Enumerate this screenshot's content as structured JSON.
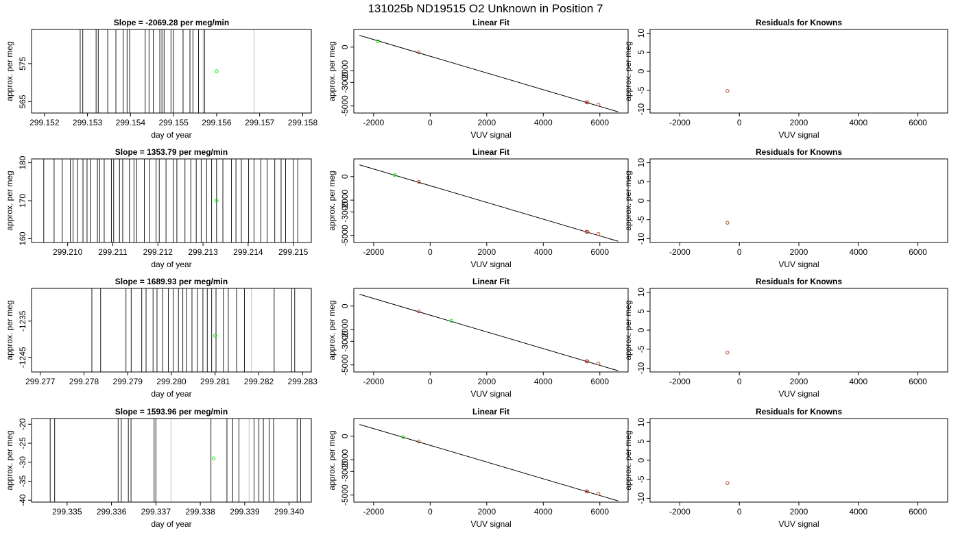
{
  "figure": {
    "title": "131025b      ND19515    O2 Unknown in Position  7"
  },
  "colors": {
    "frame": "#000000",
    "trace_dark": "#1a1a1a",
    "trace_light": "#c8c8c8",
    "unknown_point": "#00ee00",
    "known_point": "#b5442f",
    "fit_line": "#000000"
  },
  "chart_data": [
    {
      "type": "line",
      "row": 0,
      "kind": "time",
      "title": "Slope =  -2069.28  per meg/min",
      "xlabel": "day of year",
      "ylabel": "approx. per meg",
      "xlim": [
        299.1517,
        299.1582
      ],
      "ylim": [
        562,
        584
      ],
      "xticks": [
        299.152,
        299.153,
        299.154,
        299.155,
        299.156,
        299.157,
        299.158
      ],
      "xtick_labels": [
        "299.152",
        "299.153",
        "299.154",
        "299.155",
        "299.156",
        "299.157",
        "299.158"
      ],
      "yticks": [
        565,
        575
      ],
      "ytick_labels": [
        "565",
        "575"
      ],
      "dark_lines": [
        299.15283,
        299.15289,
        299.1532,
        299.15325,
        299.15347,
        299.15366,
        299.15383,
        299.15392,
        299.15398,
        299.15434,
        299.15443,
        299.15453,
        299.15468,
        299.15473,
        299.15478,
        299.15494,
        299.155,
        299.15522,
        299.15538,
        299.15545,
        299.15558,
        299.15569,
        299.15572
      ],
      "light_lines": [
        299.15569,
        299.15687
      ],
      "unknown_point": {
        "x": 299.156,
        "y": 573
      },
      "known_points": []
    },
    {
      "type": "scatter",
      "row": 0,
      "kind": "fit",
      "title": "Linear Fit",
      "xlabel": "VUV signal",
      "ylabel": "approx. per meg",
      "xlim": [
        -2700,
        7000
      ],
      "ylim": [
        -5600,
        1500
      ],
      "xticks": [
        -2000,
        0,
        2000,
        4000,
        6000
      ],
      "xtick_labels": [
        "-2000",
        "0",
        "2000",
        "4000",
        "6000"
      ],
      "yticks": [
        -5000,
        -3000,
        -2000,
        0
      ],
      "ytick_labels": [
        "-5000",
        "-3000",
        "-2000",
        "0"
      ],
      "fit_line": {
        "x": [
          -2500,
          6650
        ],
        "y": [
          1000,
          -5500
        ]
      },
      "unknown_point": {
        "x": -1850,
        "y": 500
      },
      "known_points": [
        {
          "x": -400,
          "y": -450
        },
        {
          "x": 5530,
          "y": -4680
        },
        {
          "x": 5560,
          "y": -4700
        },
        {
          "x": 5950,
          "y": -4880
        }
      ]
    },
    {
      "type": "scatter",
      "row": 0,
      "kind": "resid",
      "title": "Residuals for Knowns",
      "xlabel": "VUV signal",
      "ylabel": "approx. per meg",
      "xlim": [
        -3000,
        7000
      ],
      "ylim": [
        -11,
        11
      ],
      "xticks": [
        -2000,
        0,
        2000,
        4000,
        6000
      ],
      "xtick_labels": [
        "-2000",
        "0",
        "2000",
        "4000",
        "6000"
      ],
      "yticks": [
        -10,
        -5,
        0,
        5,
        10
      ],
      "ytick_labels": [
        "-10",
        "-5",
        "0",
        "5",
        "10"
      ],
      "known_points": [
        {
          "x": -400,
          "y": -5.2
        }
      ]
    },
    {
      "type": "line",
      "row": 1,
      "kind": "time",
      "title": "Slope =  1353.79  per meg/min",
      "xlabel": "day of year",
      "ylabel": "approx. per meg",
      "xlim": [
        299.2092,
        299.2154
      ],
      "ylim": [
        159,
        181
      ],
      "xticks": [
        299.21,
        299.211,
        299.212,
        299.213,
        299.214,
        299.215
      ],
      "xtick_labels": [
        "299.210",
        "299.211",
        "299.212",
        "299.213",
        "299.214",
        "299.215"
      ],
      "yticks": [
        160,
        170,
        180
      ],
      "ytick_labels": [
        "160",
        "170",
        "180"
      ],
      "dark_lines": [
        299.20947,
        299.2097,
        299.20988,
        299.21006,
        299.21012,
        299.21022,
        299.21034,
        299.21043,
        299.2105,
        299.21066,
        299.21071,
        299.21081,
        299.21097,
        299.21102,
        299.21115,
        299.21122,
        299.21137,
        299.21147,
        299.21153,
        299.2117,
        299.21182,
        299.21196,
        299.21203,
        299.21218,
        299.21234,
        299.21242,
        299.2126,
        299.21273,
        299.21285,
        299.21296,
        299.21308,
        299.21319,
        299.2133,
        299.21344,
        299.21363,
        299.21373,
        299.21385,
        299.21401,
        299.21413,
        299.21428,
        299.21442,
        299.21459,
        299.21473,
        299.21483,
        299.215,
        299.2151
      ],
      "light_lines": [],
      "unknown_point": {
        "x": 299.2133,
        "y": 170
      },
      "known_points": []
    },
    {
      "type": "scatter",
      "row": 1,
      "kind": "fit",
      "title": "Linear Fit",
      "xlabel": "VUV signal",
      "ylabel": "approx. per meg",
      "xlim": [
        -2700,
        7000
      ],
      "ylim": [
        -5600,
        1500
      ],
      "xticks": [
        -2000,
        0,
        2000,
        4000,
        6000
      ],
      "xtick_labels": [
        "-2000",
        "0",
        "2000",
        "4000",
        "6000"
      ],
      "yticks": [
        -5000,
        -3000,
        -2000,
        0
      ],
      "ytick_labels": [
        "-5000",
        "-3000",
        "-2000",
        "0"
      ],
      "fit_line": {
        "x": [
          -2500,
          6650
        ],
        "y": [
          1000,
          -5500
        ]
      },
      "unknown_point": {
        "x": -1250,
        "y": 120
      },
      "known_points": [
        {
          "x": -400,
          "y": -450
        },
        {
          "x": 5530,
          "y": -4680
        },
        {
          "x": 5560,
          "y": -4700
        },
        {
          "x": 5950,
          "y": -4880
        }
      ]
    },
    {
      "type": "scatter",
      "row": 1,
      "kind": "resid",
      "title": "Residuals for Knowns",
      "xlabel": "VUV signal",
      "ylabel": "approx. per meg",
      "xlim": [
        -3000,
        7000
      ],
      "ylim": [
        -11,
        11
      ],
      "xticks": [
        -2000,
        0,
        2000,
        4000,
        6000
      ],
      "xtick_labels": [
        "-2000",
        "0",
        "2000",
        "4000",
        "6000"
      ],
      "yticks": [
        -10,
        -5,
        0,
        5,
        10
      ],
      "ytick_labels": [
        "-10",
        "-5",
        "0",
        "5",
        "10"
      ],
      "known_points": [
        {
          "x": -400,
          "y": -5.8
        }
      ]
    },
    {
      "type": "line",
      "row": 2,
      "kind": "time",
      "title": "Slope =  1689.93  per meg/min",
      "xlabel": "day of year",
      "ylabel": "approx. per meg",
      "xlim": [
        299.2768,
        299.2832
      ],
      "ylim": [
        -1249,
        -1226
      ],
      "xticks": [
        299.277,
        299.278,
        299.279,
        299.28,
        299.281,
        299.282,
        299.283
      ],
      "xtick_labels": [
        "299.277",
        "299.278",
        "299.279",
        "299.280",
        "299.281",
        "299.282",
        "299.283"
      ],
      "yticks": [
        -1245,
        -1235
      ],
      "ytick_labels": [
        "-1245",
        "-1235"
      ],
      "dark_lines": [
        299.27818,
        299.27838,
        299.27896,
        299.27908,
        299.27932,
        299.27942,
        299.27958,
        299.27967,
        299.2798,
        299.27993,
        299.28004,
        299.28016,
        299.28026,
        299.28034,
        299.28047,
        299.28059,
        299.28072,
        299.28082,
        299.28092,
        299.28102,
        299.28119,
        299.2813,
        299.28149,
        299.28167,
        299.28235,
        299.28275,
        299.28282
      ],
      "light_lines": [
        299.28183
      ],
      "unknown_point": {
        "x": 299.281,
        "y": -1239
      },
      "known_points": []
    },
    {
      "type": "scatter",
      "row": 2,
      "kind": "fit",
      "title": "Linear Fit",
      "xlabel": "VUV signal",
      "ylabel": "approx. per meg",
      "xlim": [
        -2700,
        7000
      ],
      "ylim": [
        -5600,
        1500
      ],
      "xticks": [
        -2000,
        0,
        2000,
        4000,
        6000
      ],
      "xtick_labels": [
        "-2000",
        "0",
        "2000",
        "4000",
        "6000"
      ],
      "yticks": [
        -5000,
        -3000,
        -2000,
        0
      ],
      "ytick_labels": [
        "-5000",
        "-3000",
        "-2000",
        "0"
      ],
      "fit_line": {
        "x": [
          -2500,
          6650
        ],
        "y": [
          1000,
          -5500
        ]
      },
      "unknown_point": {
        "x": 750,
        "y": -1250
      },
      "known_points": [
        {
          "x": -400,
          "y": -450
        },
        {
          "x": 5530,
          "y": -4680
        },
        {
          "x": 5560,
          "y": -4700
        },
        {
          "x": 5950,
          "y": -4880
        }
      ]
    },
    {
      "type": "scatter",
      "row": 2,
      "kind": "resid",
      "title": "Residuals for Knowns",
      "xlabel": "VUV signal",
      "ylabel": "approx. per meg",
      "xlim": [
        -3000,
        7000
      ],
      "ylim": [
        -11,
        11
      ],
      "xticks": [
        -2000,
        0,
        2000,
        4000,
        6000
      ],
      "xtick_labels": [
        "-2000",
        "0",
        "2000",
        "4000",
        "6000"
      ],
      "yticks": [
        -10,
        -5,
        0,
        5,
        10
      ],
      "ytick_labels": [
        "-10",
        "-5",
        "0",
        "5",
        "10"
      ],
      "known_points": [
        {
          "x": -400,
          "y": -5.9
        }
      ]
    },
    {
      "type": "line",
      "row": 3,
      "kind": "time",
      "title": "Slope =  1593.96  per meg/min",
      "xlabel": "day of year",
      "ylabel": "approx. per meg",
      "xlim": [
        299.3342,
        299.3405
      ],
      "ylim": [
        -40.5,
        -18.5
      ],
      "xticks": [
        299.335,
        299.336,
        299.337,
        299.338,
        299.339,
        299.34
      ],
      "xtick_labels": [
        "299.335",
        "299.336",
        "299.337",
        "299.338",
        "299.339",
        "299.340"
      ],
      "yticks": [
        -40,
        -35,
        -30,
        -25,
        -20
      ],
      "ytick_labels": [
        "-40",
        "-35",
        "-30",
        "-25",
        "-20"
      ],
      "dark_lines": [
        299.33462,
        299.33472,
        299.33615,
        299.33622,
        299.33638,
        299.33644,
        299.33696,
        299.337,
        299.33824,
        299.3386,
        299.33873,
        299.33887,
        299.33921,
        299.33932,
        299.33942,
        299.33955,
        299.33965,
        299.34018,
        299.34026
      ],
      "light_lines": [
        299.33734,
        299.3391
      ],
      "unknown_point": {
        "x": 299.3383,
        "y": -29
      },
      "known_points": []
    },
    {
      "type": "scatter",
      "row": 3,
      "kind": "fit",
      "title": "Linear Fit",
      "xlabel": "VUV signal",
      "ylabel": "approx. per meg",
      "xlim": [
        -2700,
        7000
      ],
      "ylim": [
        -5600,
        1500
      ],
      "xticks": [
        -2000,
        0,
        2000,
        4000,
        6000
      ],
      "xtick_labels": [
        "-2000",
        "0",
        "2000",
        "4000",
        "6000"
      ],
      "yticks": [
        -5000,
        -3000,
        -2000,
        0
      ],
      "ytick_labels": [
        "-5000",
        "-3000",
        "-2000",
        "0"
      ],
      "fit_line": {
        "x": [
          -2500,
          6650
        ],
        "y": [
          1000,
          -5500
        ]
      },
      "unknown_point": {
        "x": -950,
        "y": -80
      },
      "known_points": [
        {
          "x": -400,
          "y": -450
        },
        {
          "x": 5530,
          "y": -4680
        },
        {
          "x": 5560,
          "y": -4700
        },
        {
          "x": 5950,
          "y": -4880
        }
      ]
    },
    {
      "type": "scatter",
      "row": 3,
      "kind": "resid",
      "title": "Residuals for Knowns",
      "xlabel": "VUV signal",
      "ylabel": "approx. per meg",
      "xlim": [
        -3000,
        7000
      ],
      "ylim": [
        -11,
        11
      ],
      "xticks": [
        -2000,
        0,
        2000,
        4000,
        6000
      ],
      "xtick_labels": [
        "-2000",
        "0",
        "2000",
        "4000",
        "6000"
      ],
      "yticks": [
        -10,
        -5,
        0,
        5,
        10
      ],
      "ytick_labels": [
        "-10",
        "-5",
        "0",
        "5",
        "10"
      ],
      "known_points": [
        {
          "x": -400,
          "y": -6.0
        }
      ]
    }
  ]
}
